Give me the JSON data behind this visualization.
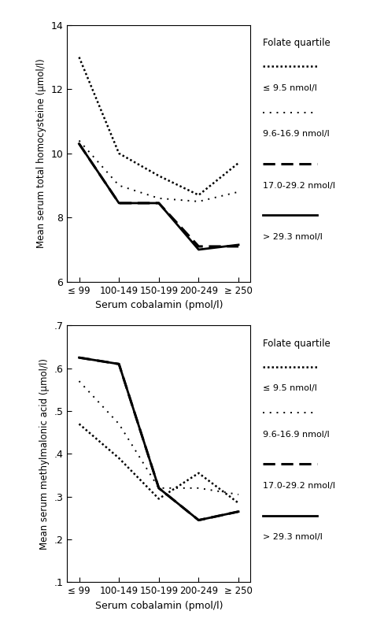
{
  "x_labels": [
    "≤ 99",
    "100-149",
    "150-199",
    "200-249",
    "≥ 250"
  ],
  "x_positions": [
    0,
    1,
    2,
    3,
    4
  ],
  "hcy_q1": [
    13.0,
    10.0,
    9.3,
    8.7,
    9.7
  ],
  "hcy_q2": [
    10.4,
    9.0,
    8.6,
    8.5,
    8.8
  ],
  "hcy_q3": [
    10.3,
    8.45,
    8.45,
    7.1,
    7.1
  ],
  "hcy_q4": [
    10.3,
    8.45,
    8.45,
    7.0,
    7.15
  ],
  "mma_q1": [
    0.47,
    0.39,
    0.295,
    0.355,
    0.285
  ],
  "mma_q2": [
    0.57,
    0.47,
    0.32,
    0.32,
    0.305
  ],
  "mma_q3": [
    0.625,
    0.61,
    0.32,
    0.245,
    0.265
  ],
  "mma_q4": [
    0.625,
    0.61,
    0.32,
    0.245,
    0.265
  ],
  "hcy_ylim": [
    6,
    14
  ],
  "hcy_yticks": [
    6,
    8,
    10,
    12,
    14
  ],
  "hcy_ytick_labels": [
    "6",
    "8",
    "10",
    "12",
    "14"
  ],
  "mma_ylim": [
    0.1,
    0.7
  ],
  "mma_yticks": [
    0.1,
    0.2,
    0.3,
    0.4,
    0.5,
    0.6,
    0.7
  ],
  "mma_ytick_labels": [
    ".1",
    ".2",
    ".3",
    ".4",
    ".5",
    ".6",
    ".7"
  ],
  "xlabel": "Serum cobalamin (pmol/l)",
  "ylabel_top": "Mean serum total homocysteine (μmol/l)",
  "ylabel_bottom": "Mean serum methylmalonic acid (μmol/l)",
  "legend_title": "Folate quartile",
  "legend_labels": [
    "≤ 9.5 nmol/l",
    "9.6-16.9 nmol/l",
    "17.0-29.2 nmol/l",
    "> 29.3 nmol/l"
  ]
}
